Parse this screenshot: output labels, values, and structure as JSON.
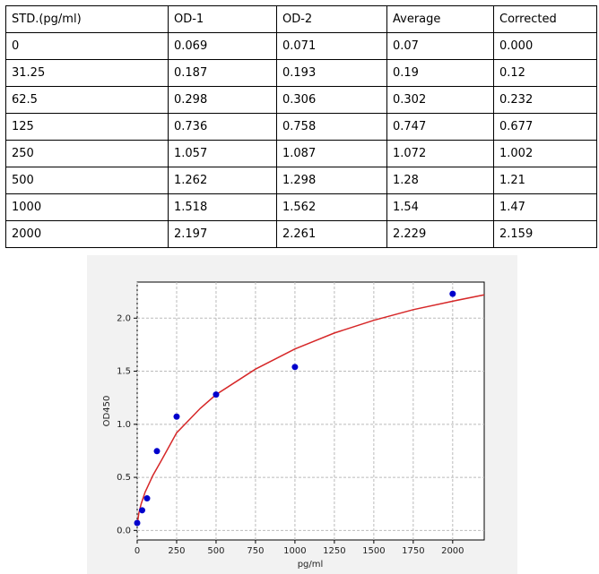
{
  "table": {
    "header": [
      "STD.(pg/ml)",
      "OD-1",
      "OD-2",
      "Average",
      "Corrected"
    ],
    "rows": [
      [
        "0",
        "0.069",
        "0.071",
        "0.07",
        "0.000"
      ],
      [
        "31.25",
        "0.187",
        "0.193",
        "0.19",
        "0.12"
      ],
      [
        "62.5",
        "0.298",
        "0.306",
        "0.302",
        "0.232"
      ],
      [
        "125",
        "0.736",
        "0.758",
        "0.747",
        "0.677"
      ],
      [
        "250",
        "1.057",
        "1.087",
        "1.072",
        "1.002"
      ],
      [
        "500",
        "1.262",
        "1.298",
        "1.28",
        "1.21"
      ],
      [
        "1000",
        "1.518",
        "1.562",
        "1.54",
        "1.47"
      ],
      [
        "2000",
        "2.197",
        "2.261",
        "2.229",
        "2.159"
      ]
    ]
  },
  "chart_data": {
    "type": "scatter",
    "xlabel": "pg/ml",
    "ylabel": "OD450",
    "x": [
      0,
      31.25,
      62.5,
      125,
      250,
      500,
      1000,
      2000
    ],
    "series": [
      {
        "color": "#0000cc",
        "values": [
          0.07,
          0.19,
          0.302,
          0.747,
          1.072,
          1.28,
          1.54,
          2.229
        ]
      }
    ],
    "fit": {
      "color": "#d62728",
      "x": [
        0,
        10,
        25,
        50,
        100,
        150,
        250,
        400,
        500,
        750,
        1000,
        1250,
        1500,
        1750,
        2000,
        2200
      ],
      "values": [
        0.05,
        0.16,
        0.25,
        0.36,
        0.52,
        0.65,
        0.92,
        1.15,
        1.28,
        1.52,
        1.71,
        1.86,
        1.98,
        2.08,
        2.16,
        2.22
      ]
    },
    "xlim": [
      0,
      2200
    ],
    "ylim": [
      -0.09,
      2.34
    ],
    "xticks": [
      0,
      250,
      500,
      750,
      1000,
      1250,
      1500,
      1750,
      2000
    ],
    "yticks": [
      {
        "value": 0,
        "label": "0.0"
      },
      0.5,
      {
        "value": 1,
        "label": "1.0"
      },
      1.5,
      {
        "value": 2,
        "label": "2.0"
      }
    ],
    "grid": true
  }
}
